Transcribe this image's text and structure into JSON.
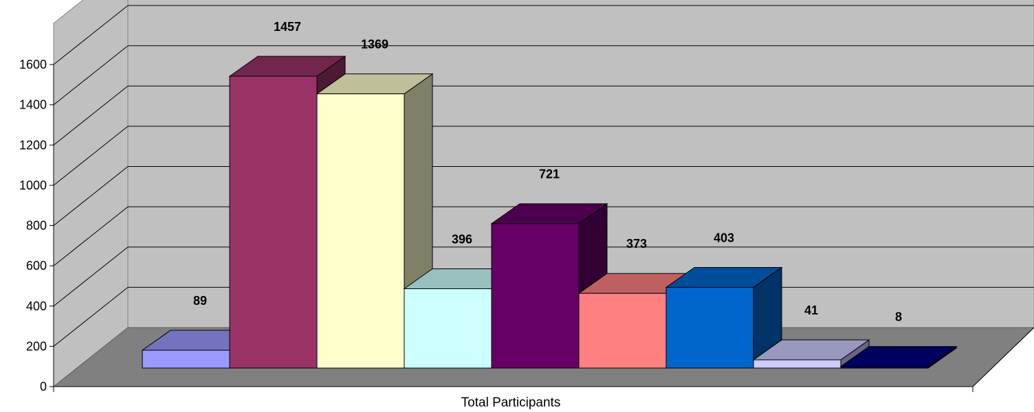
{
  "chart_data": {
    "type": "bar",
    "xlabel": "Total Participants",
    "ylabel": "",
    "ylim": [
      0,
      1600
    ],
    "yticks": [
      0,
      200,
      400,
      600,
      800,
      1000,
      1200,
      1400,
      1600
    ],
    "grid": true,
    "legend": "none",
    "style": "3d-clustered-column",
    "series": [
      {
        "values": [
          89
        ],
        "color": "#9999FF"
      },
      {
        "values": [
          1457
        ],
        "color": "#993366"
      },
      {
        "values": [
          1369
        ],
        "color": "#FFFFCC"
      },
      {
        "values": [
          396
        ],
        "color": "#CCFFFF"
      },
      {
        "values": [
          721
        ],
        "color": "#660066"
      },
      {
        "values": [
          373
        ],
        "color": "#FF8080"
      },
      {
        "values": [
          403
        ],
        "color": "#0066CC"
      },
      {
        "values": [
          41
        ],
        "color": "#CCCCFF"
      },
      {
        "values": [
          8
        ],
        "color": "#000080"
      }
    ],
    "data_labels": [
      "89",
      "1457",
      "1369",
      "396",
      "721",
      "373",
      "403",
      "41",
      "8"
    ]
  },
  "colors": {
    "back_wall": "#C0C0C0",
    "side_wall": "#C0C0C0",
    "floor": "#808080",
    "gridline": "#000000"
  }
}
